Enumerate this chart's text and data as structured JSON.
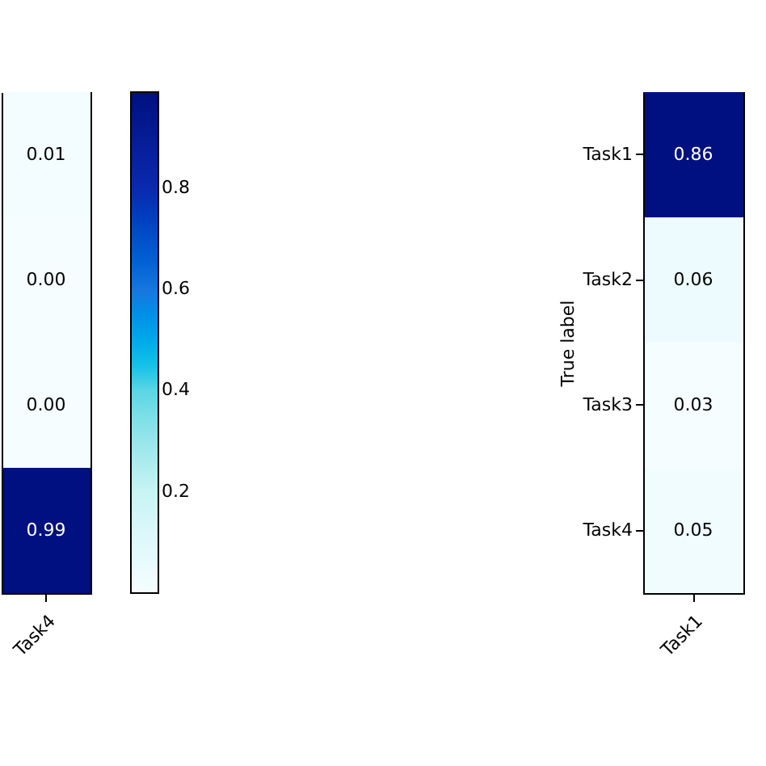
{
  "chart_data": [
    {
      "type": "heatmap",
      "categories": [
        "Task4"
      ],
      "y_categories": [
        null,
        null,
        null,
        null
      ],
      "cells": [
        [
          0.01
        ],
        [
          0.0
        ],
        [
          0.0
        ],
        [
          0.99
        ]
      ],
      "cell_labels": [
        [
          "0.01"
        ],
        [
          "0.00"
        ],
        [
          "0.00"
        ],
        [
          "0.99"
        ]
      ],
      "clim": [
        0,
        0.99
      ],
      "cticks": [
        0.2,
        0.4,
        0.6,
        0.8
      ],
      "data_labels": true,
      "tick_labels": "x"
    },
    {
      "type": "heatmap",
      "categories": [
        "Task1"
      ],
      "y_categories": [
        "Task1",
        "Task2",
        "Task3",
        "Task4"
      ],
      "ylabel": "True label",
      "cells": [
        [
          0.86
        ],
        [
          0.06
        ],
        [
          0.03
        ],
        [
          0.05
        ]
      ],
      "data_labels": true
    }
  ]
}
